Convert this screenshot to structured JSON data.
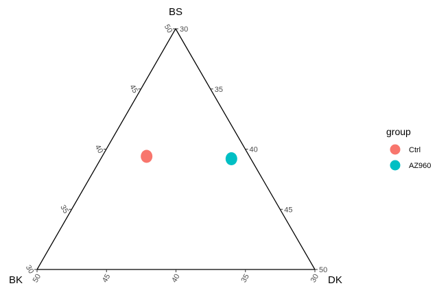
{
  "chart_data": {
    "type": "scatter",
    "subtype": "ternary",
    "axes": {
      "top": {
        "label": "BS",
        "ticks": [
          "30",
          "35",
          "40",
          "45",
          "50"
        ]
      },
      "right": {
        "label": "DK",
        "ticks": [
          "30",
          "35",
          "40",
          "45",
          "50"
        ]
      },
      "left": {
        "label": "BK",
        "ticks": [
          "30",
          "35",
          "40",
          "45",
          "50"
        ]
      }
    },
    "range": [
      30,
      50
    ],
    "grid": false,
    "legend": {
      "title": "group",
      "position": "right",
      "items": [
        {
          "label": "Ctrl",
          "color": "#F8766D"
        },
        {
          "label": "AZ960",
          "color": "#00BFC4"
        }
      ]
    },
    "series": [
      {
        "name": "Ctrl",
        "color": "#F8766D",
        "points": [
          {
            "BS": 34.7,
            "DK": 31.6,
            "BK": 33.7
          }
        ]
      },
      {
        "name": "AZ960",
        "color": "#00BFC4",
        "points": [
          {
            "BS": 34.6,
            "DK": 34.7,
            "BK": 30.7
          }
        ]
      }
    ]
  }
}
